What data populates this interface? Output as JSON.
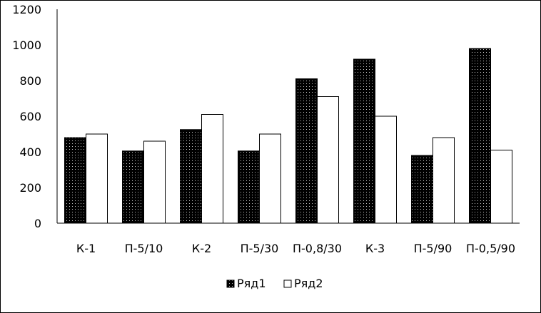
{
  "chart_data": {
    "type": "bar",
    "categories": [
      "К-1",
      "П-5/10",
      "К-2",
      "П-5/30",
      "П-0,8/30",
      "К-3",
      "П-5/90",
      "П-0,5/90"
    ],
    "series": [
      {
        "name": "Ряд1",
        "values": [
          480,
          405,
          525,
          405,
          810,
          920,
          380,
          980
        ],
        "fill": "#000000",
        "pattern": "dotted"
      },
      {
        "name": "Ряд2",
        "values": [
          500,
          460,
          610,
          500,
          710,
          600,
          480,
          410
        ],
        "fill": "#ffffff"
      }
    ],
    "yticks": [
      "0",
      "200",
      "400",
      "600",
      "800",
      "1000",
      "1200"
    ],
    "ylim": [
      0,
      1200
    ],
    "grid": false,
    "legend_position": "bottom"
  }
}
